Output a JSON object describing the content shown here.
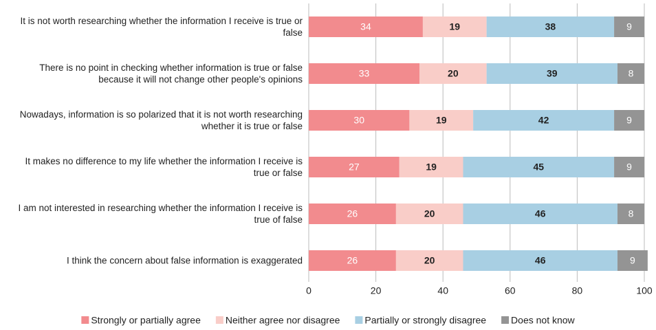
{
  "chart_data": {
    "type": "stacked-barh",
    "categories": [
      "It is not worth researching whether the information I receive is true or false",
      "There is no point in checking whether information is true or false because it will not change other people's opinions",
      "Nowadays, information is so polarized that it is not worth researching whether it is true or false",
      "It makes no difference to my life whether the information I receive is true or false",
      "I am not interested in researching whether the information I receive is true of false",
      "I think the concern about false information is exaggerated"
    ],
    "series": [
      {
        "name": "Strongly or partially agree",
        "color": "#f28b8e",
        "values": [
          34,
          33,
          30,
          27,
          26,
          26
        ]
      },
      {
        "name": "Neither agree nor disagree",
        "color": "#f9cdc8",
        "values": [
          19,
          20,
          19,
          19,
          20,
          20
        ]
      },
      {
        "name": "Partially or strongly disagree",
        "color": "#a8cfe3",
        "values": [
          38,
          39,
          42,
          45,
          46,
          46
        ]
      },
      {
        "name": "Does not know",
        "color": "#949494",
        "values": [
          9,
          8,
          9,
          9,
          8,
          9
        ]
      }
    ],
    "xlim": [
      0,
      100
    ],
    "xticks": [
      0,
      20,
      40,
      60,
      80,
      100
    ],
    "grid": true,
    "legend": "bottom"
  }
}
